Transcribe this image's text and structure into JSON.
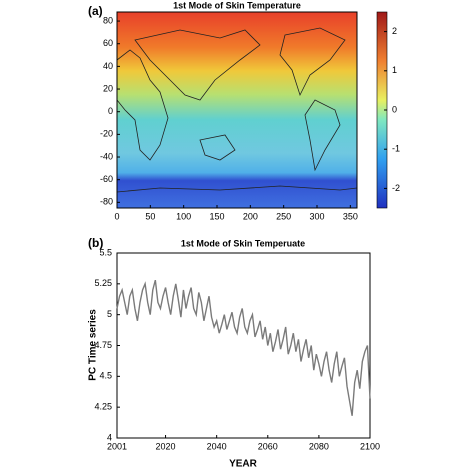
{
  "chart_data": [
    {
      "type": "heatmap",
      "panel_label": "(a)",
      "title": "1st Mode of Skin Temperature",
      "xlim": [
        0,
        360
      ],
      "xticks": [
        0,
        50,
        100,
        150,
        200,
        250,
        300,
        350
      ],
      "ylim": [
        -85,
        88
      ],
      "yticks": [
        -80,
        -60,
        -40,
        -20,
        0,
        20,
        40,
        60,
        80
      ],
      "colorbar_lim": [
        -2.5,
        2.5
      ],
      "colorbar_ticks": [
        -2,
        -1,
        0,
        1,
        2
      ]
    },
    {
      "type": "line",
      "panel_label": "(b)",
      "title": "1st Mode of Skin Temperuate",
      "x_label": "YEAR",
      "y_label": "PC Time series",
      "xlim": [
        2001,
        2100
      ],
      "xticks": [
        2001,
        2020,
        2040,
        2060,
        2080,
        2100
      ],
      "ylim": [
        4,
        5.5
      ],
      "yticks": [
        4,
        4.25,
        4.5,
        4.75,
        5,
        5.25,
        5.5
      ],
      "color": "#7a7a7a",
      "x": [
        2001,
        2002,
        2003,
        2004,
        2005,
        2006,
        2007,
        2008,
        2009,
        2010,
        2011,
        2012,
        2013,
        2014,
        2015,
        2016,
        2017,
        2018,
        2019,
        2020,
        2021,
        2022,
        2023,
        2024,
        2025,
        2026,
        2027,
        2028,
        2029,
        2030,
        2031,
        2032,
        2033,
        2034,
        2035,
        2036,
        2037,
        2038,
        2039,
        2040,
        2041,
        2042,
        2043,
        2044,
        2045,
        2046,
        2047,
        2048,
        2049,
        2050,
        2051,
        2052,
        2053,
        2054,
        2055,
        2056,
        2057,
        2058,
        2059,
        2060,
        2061,
        2062,
        2063,
        2064,
        2065,
        2066,
        2067,
        2068,
        2069,
        2070,
        2071,
        2072,
        2073,
        2074,
        2075,
        2076,
        2077,
        2078,
        2079,
        2080,
        2081,
        2082,
        2083,
        2084,
        2085,
        2086,
        2087,
        2088,
        2089,
        2090,
        2091,
        2092,
        2093,
        2094,
        2095,
        2096,
        2097,
        2098,
        2099,
        2100
      ],
      "values": [
        5.05,
        5.15,
        5.2,
        5.1,
        5.0,
        5.15,
        5.2,
        5.05,
        4.95,
        5.1,
        5.2,
        5.25,
        5.1,
        5.0,
        5.2,
        5.28,
        5.1,
        5.05,
        5.15,
        5.22,
        5.1,
        5.0,
        5.15,
        5.25,
        5.12,
        4.98,
        5.2,
        5.05,
        5.15,
        5.22,
        5.05,
        5.0,
        5.18,
        5.1,
        4.95,
        5.05,
        5.15,
        4.98,
        4.9,
        4.95,
        4.85,
        4.92,
        5.0,
        4.88,
        4.95,
        5.02,
        4.9,
        4.85,
        4.98,
        5.05,
        4.9,
        4.85,
        4.95,
        5.0,
        4.82,
        4.88,
        4.95,
        4.8,
        4.9,
        4.75,
        4.85,
        4.7,
        4.78,
        4.88,
        4.72,
        4.8,
        4.9,
        4.68,
        4.75,
        4.85,
        4.7,
        4.8,
        4.62,
        4.72,
        4.8,
        4.65,
        4.75,
        4.55,
        4.68,
        4.6,
        4.5,
        4.62,
        4.7,
        4.55,
        4.45,
        4.6,
        4.7,
        4.5,
        4.58,
        4.65,
        4.42,
        4.3,
        4.18,
        4.45,
        4.55,
        4.4,
        4.62,
        4.7,
        4.75,
        4.32
      ]
    }
  ]
}
